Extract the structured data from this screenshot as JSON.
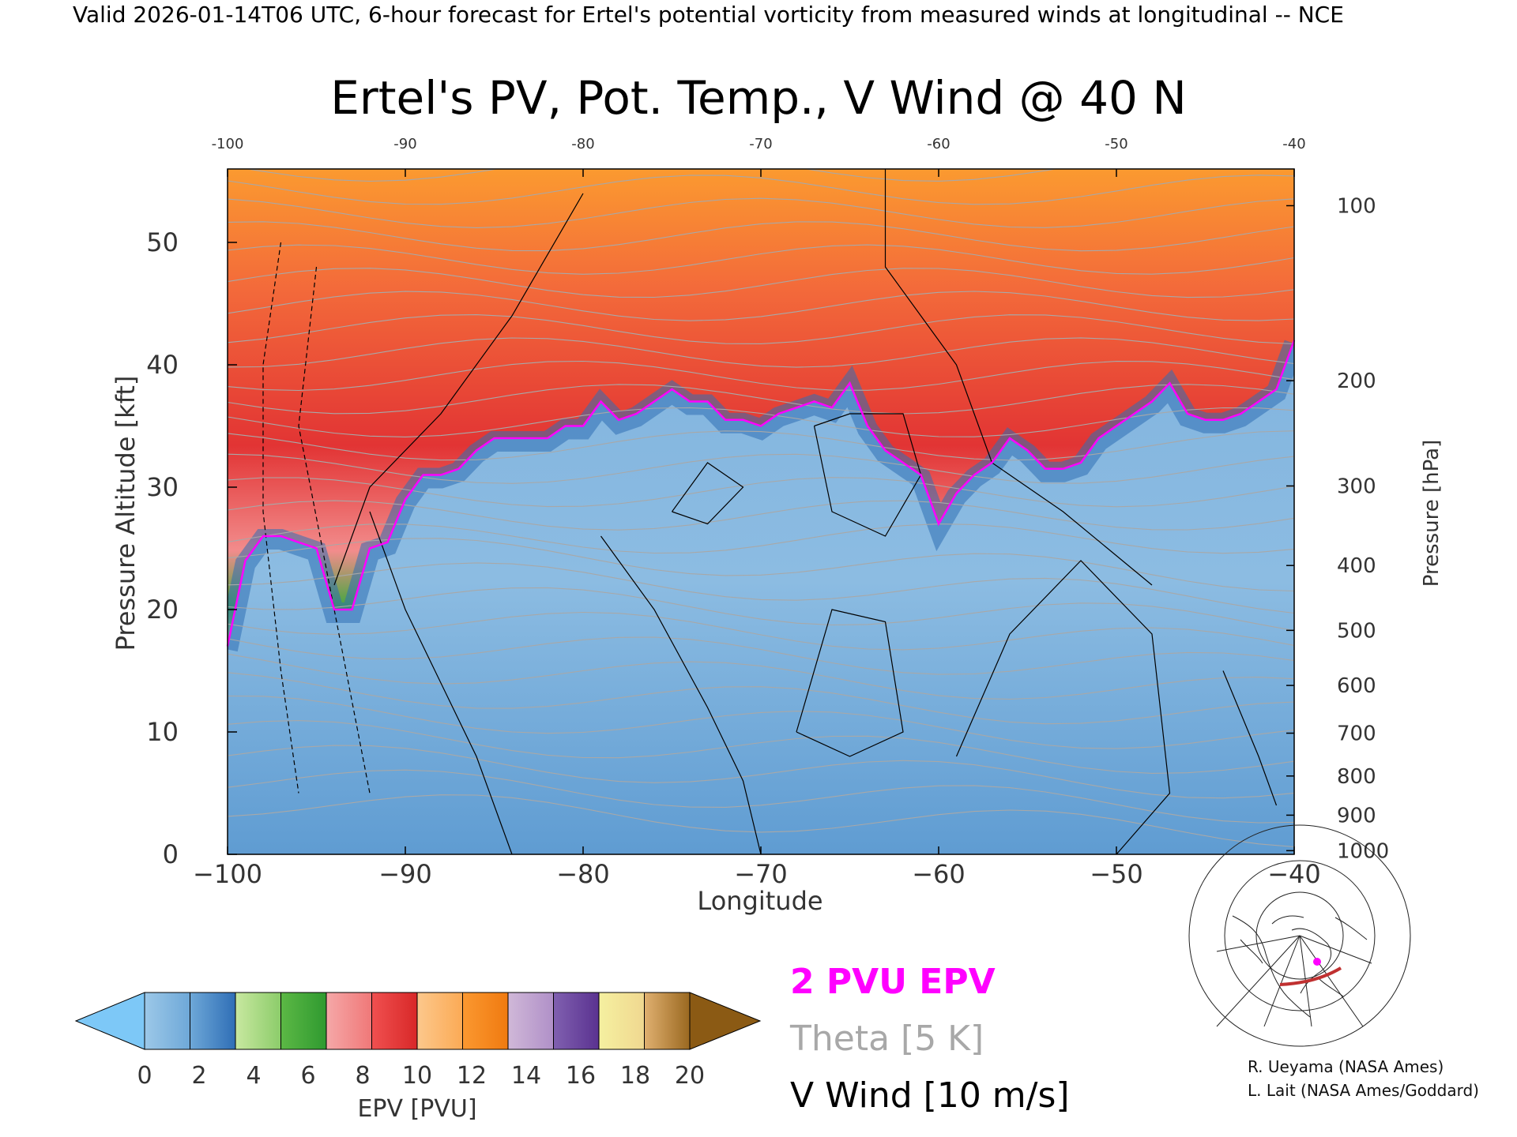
{
  "header": {
    "valid_line": "Valid 2026-01-14T06 UTC, 6-hour forecast for Ertel's potential vorticity from measured winds at longitudinal -- NCE"
  },
  "chart_data": {
    "type": "heatmap",
    "title": "Ertel's PV, Pot. Temp., V Wind @ 40 N",
    "xlabel": "Longitude",
    "ylabel": "Pressure Altitude [kft]",
    "y2label": "Pressure [hPa]",
    "xlim": [
      -100,
      -40
    ],
    "ylim": [
      0,
      56
    ],
    "x_ticks": [
      -100,
      -90,
      -80,
      -70,
      -60,
      -50,
      -40
    ],
    "x_tick_labels": [
      "−100",
      "−90",
      "−80",
      "−70",
      "−60",
      "−50",
      "−40"
    ],
    "x_top_tick_labels": [
      "-100",
      "-90",
      "-80",
      "-70",
      "-60",
      "-50",
      "-40"
    ],
    "y_ticks": [
      0,
      10,
      20,
      30,
      40,
      50
    ],
    "y_tick_labels": [
      "0",
      "10",
      "20",
      "30",
      "40",
      "50"
    ],
    "pressure_ticks": [
      {
        "hpa": 100,
        "kft": 53.0
      },
      {
        "hpa": 200,
        "kft": 38.7
      },
      {
        "hpa": 300,
        "kft": 30.1
      },
      {
        "hpa": 400,
        "kft": 23.6
      },
      {
        "hpa": 500,
        "kft": 18.3
      },
      {
        "hpa": 600,
        "kft": 13.8
      },
      {
        "hpa": 700,
        "kft": 9.9
      },
      {
        "hpa": 800,
        "kft": 6.4
      },
      {
        "hpa": 900,
        "kft": 3.2
      },
      {
        "hpa": 1000,
        "kft": 0.3
      }
    ],
    "pressure_tick_labels": [
      "100",
      "200",
      "300",
      "400",
      "500",
      "600",
      "700",
      "800",
      "900",
      "1000"
    ],
    "tropopause_2pvu": {
      "name": "2 PVU EPV",
      "color": "#ff00ff",
      "x": [
        -100,
        -99,
        -98,
        -97,
        -96,
        -95,
        -94,
        -93,
        -92,
        -91,
        -90,
        -89,
        -88,
        -87,
        -86,
        -85,
        -84,
        -83,
        -82,
        -81,
        -80,
        -79,
        -78,
        -77,
        -76,
        -75,
        -74,
        -73,
        -72,
        -71,
        -70,
        -69,
        -68,
        -67,
        -66,
        -65,
        -64,
        -63,
        -62,
        -61,
        -60,
        -59,
        -58,
        -57,
        -56,
        -55,
        -54,
        -53,
        -52,
        -51,
        -50,
        -49,
        -48,
        -47,
        -46,
        -45,
        -44,
        -43,
        -42,
        -41,
        -40
      ],
      "y": [
        17,
        24,
        26,
        26,
        25.5,
        25,
        20,
        20,
        25,
        25.5,
        29,
        31,
        31,
        31.5,
        33,
        34,
        34,
        34,
        34,
        35,
        35,
        37,
        35.5,
        36,
        37,
        38,
        37,
        37,
        35.5,
        35.5,
        35,
        36,
        36.5,
        37,
        36.5,
        38.5,
        35,
        33,
        32,
        31,
        27,
        29.5,
        31,
        32,
        34,
        33,
        31.5,
        31.5,
        32,
        34,
        35,
        36,
        37,
        38.5,
        36,
        35.5,
        35.5,
        36,
        37,
        38,
        42
      ]
    },
    "pv_field_note": "",
    "colorbar": {
      "label": "EPV [PVU]",
      "ticks": [
        "0",
        "2",
        "4",
        "6",
        "8",
        "10",
        "12",
        "14",
        "16",
        "18",
        "20"
      ],
      "under_color": "#7dc8f7",
      "over_color": "#8b5a14",
      "bands": [
        [
          "#9cc8e8",
          "#6ea8d8"
        ],
        [
          "#6ea8d8",
          "#2f6eb6"
        ],
        [
          "#c8e8a0",
          "#8ccc6a"
        ],
        [
          "#5cb845",
          "#2f9a30"
        ],
        [
          "#f5a8a8",
          "#f07878"
        ],
        [
          "#f05050",
          "#d82828"
        ],
        [
          "#fcc88c",
          "#fbaa55"
        ],
        [
          "#fb9830",
          "#f07a10"
        ],
        [
          "#d0b8d8",
          "#b090c8"
        ],
        [
          "#8060b0",
          "#5a3290"
        ],
        [
          "#f5f0a0",
          "#f0d890"
        ],
        [
          "#e0b070",
          "#9a6820"
        ]
      ]
    },
    "legend": [
      {
        "label": "2 PVU EPV",
        "color": "#ff00ff"
      },
      {
        "label": "Theta [5 K]",
        "color": "#a0a0a0"
      },
      {
        "label": "V Wind [10 m/s]",
        "color": "#000000"
      }
    ]
  },
  "credits": {
    "line1": "R. Ueyama (NASA Ames)",
    "line2": "L. Lait (NASA Ames/Goddard)"
  },
  "colors": {
    "theta": "#a8a8a8",
    "wind": "#000000",
    "tropopause": "#ff00ff",
    "map_route": "#c03030"
  },
  "map_icon": "north-america-polar-map-icon"
}
